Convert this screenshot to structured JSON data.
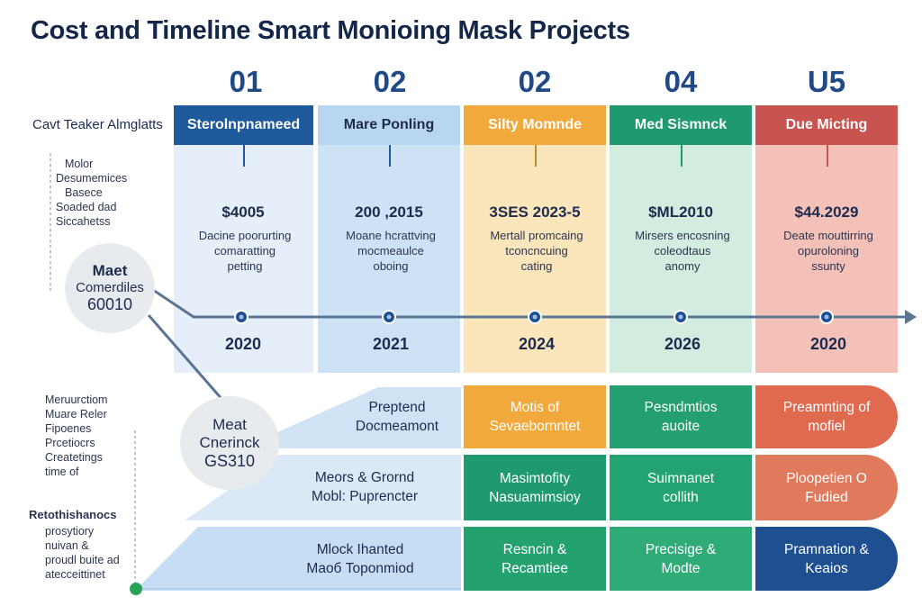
{
  "title": "Cost and Timeline Smart Monioing Mask Projects",
  "row_label": "Cavt Teaker Almglatts",
  "columns": [
    {
      "num": "01",
      "header": "Sterolnpnameed",
      "cost": "$4005",
      "desc": [
        "Dacine poorurting",
        "comaratting",
        "petting"
      ],
      "year": "2020",
      "header_color": "#1e5a9c",
      "body_color": "#e6eff9"
    },
    {
      "num": "02",
      "header": "Mare Ponling",
      "cost": "200 ,2015",
      "desc": [
        "Moane hcrattving",
        "mocmeaulce",
        "oboing"
      ],
      "year": "2021",
      "header_color": "#b9d6f1",
      "body_color": "#cde2f5"
    },
    {
      "num": "02",
      "header": "Silty Momnde",
      "cost": "3SES 2023-5",
      "desc": [
        "Mertall promcaing",
        "tconcncuing",
        "cating"
      ],
      "year": "2024",
      "header_color": "#f2a93b",
      "body_color": "#fbe5bb"
    },
    {
      "num": "04",
      "header": "Med Sismnck",
      "cost": "$ML2010",
      "desc": [
        "Mirsers encosning",
        "coleodtaus",
        "anomy"
      ],
      "year": "2026",
      "header_color": "#1f9a6e",
      "body_color": "#d2ecdf"
    },
    {
      "num": "U5",
      "header": "Due Micting",
      "cost": "$44.2029",
      "desc": [
        "Deate mouttirring",
        "opuroloning",
        "ssunty"
      ],
      "year": "2020",
      "header_color": "#c8534f",
      "body_color": "#f4c1b9"
    }
  ],
  "side_notes": {
    "top": [
      "Molor",
      "Desumemices",
      "Basece",
      "Soaded dad",
      "Siccahetss"
    ],
    "middle": [
      "Meruurctiom",
      "Muare Reler",
      "Fipoenes",
      "Prcetiocrs",
      "Createtings",
      "time of"
    ],
    "bottom_title": "Retothishanocs",
    "bottom": [
      "prosytiory",
      "nuivan &",
      "proudl buite ad",
      "atecceittinet"
    ]
  },
  "circles": [
    {
      "title": "Maet",
      "sub": "Comerdiles",
      "val": "60010"
    },
    {
      "title": "Meat",
      "sub": "Cnerinck",
      "val": "GS310"
    }
  ],
  "grid_rows": [
    {
      "lead": [
        "Preptend",
        "Docmeamont"
      ],
      "cells": [
        [
          "Motis of",
          "Sevaebornntet"
        ],
        [
          "Pesndmtios",
          "auoite"
        ],
        [
          "Preamnting of",
          "mofiel"
        ]
      ]
    },
    {
      "lead": [
        "Meors & Grornd",
        "Mobl: Puprencter"
      ],
      "cells": [
        [
          "Masimtofity",
          "Nasuamimsioy"
        ],
        [
          "Suimnanet",
          "collith"
        ],
        [
          "Ploopetien O",
          "Fudied"
        ]
      ]
    },
    {
      "lead": [
        "Mlock Ihanted",
        "Maoб Toponmiod"
      ],
      "cells": [
        [
          "Resncin &",
          "Recamtiee"
        ],
        [
          "Precisige &",
          "Modte"
        ],
        [
          "Pramnation &",
          "Keaios"
        ]
      ]
    }
  ],
  "colors": {
    "timeline": "#5a7594",
    "navy": "#1d4f91",
    "green_dot": "#2aa35a"
  }
}
